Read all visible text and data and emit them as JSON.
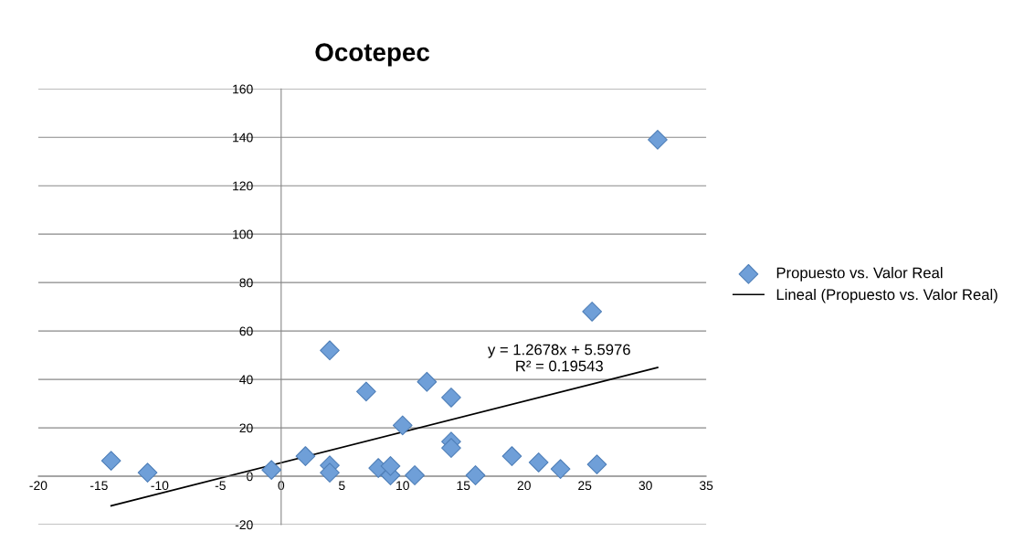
{
  "chart_data": {
    "type": "scatter",
    "title": "Ocotepec",
    "series": [
      {
        "name": "Propuesto vs. Valor Real",
        "color": "#6f9fd8",
        "marker": "diamond",
        "x": [
          -14,
          -11,
          -0.8,
          2,
          4,
          4,
          4,
          7,
          8,
          9,
          9,
          10,
          11,
          12,
          14,
          14,
          14,
          16,
          19,
          21.2,
          23,
          26,
          25.6,
          31
        ],
        "values": [
          6.4,
          1.5,
          2.6,
          8.3,
          52,
          4.5,
          1.5,
          35,
          3.4,
          0.4,
          4.2,
          21,
          0.4,
          39,
          32.5,
          14.3,
          11.7,
          0.4,
          8.3,
          5.7,
          3,
          4.9,
          68,
          139
        ]
      },
      {
        "name": "Lineal (Propuesto vs. Valor Real)",
        "type": "line",
        "color": "#000000",
        "marker": "none",
        "x": [
          -14,
          31
        ],
        "values": [
          -12.2,
          44.9
        ]
      }
    ],
    "xlim": [
      -20,
      35
    ],
    "xticks": [
      -20,
      -15,
      -10,
      -5,
      0,
      5,
      10,
      15,
      20,
      25,
      30,
      35
    ],
    "ylim": [
      -20,
      160
    ],
    "yticks": [
      -20,
      0,
      20,
      40,
      60,
      80,
      100,
      120,
      140,
      160
    ],
    "grid": "y",
    "legend": "right",
    "annotations": [
      "y = 1.2678x + 5.5976\nR² = 0.19543"
    ]
  }
}
